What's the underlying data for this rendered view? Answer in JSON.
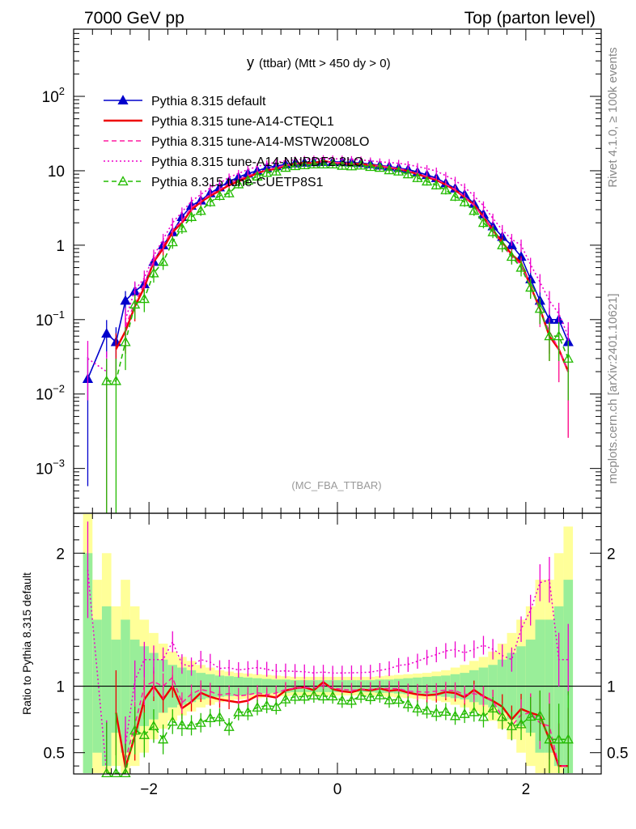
{
  "header": {
    "left": "7000 GeV pp",
    "right": "Top (parton level)"
  },
  "side_labels": {
    "rivet": "Rivet 4.1.0, ≥ 100k events",
    "mcplots": "mcplots.cern.ch [arXiv:2401.10621]"
  },
  "chart_data": {
    "type": "line",
    "title_main": "y",
    "title_sub": "(ttbar) (Mtt > 450 dy > 0)",
    "analysis_tag": "(MC_FBA_TTBAR)",
    "xlabel": "",
    "ylabel_ratio": "Ratio to Pythia 8.315 default",
    "xlim": [
      -2.8,
      2.8
    ],
    "ylim_main": [
      0.00025,
      800
    ],
    "ylim_ratio": [
      0.34,
      2.3
    ],
    "main_y_ticks": [
      {
        "v": 0.001,
        "t": "10",
        "e": "−3"
      },
      {
        "v": 0.01,
        "t": "10",
        "e": "−2"
      },
      {
        "v": 0.1,
        "t": "10",
        "e": "−1"
      },
      {
        "v": 1,
        "t": "1",
        "e": ""
      },
      {
        "v": 10,
        "t": "10",
        "e": ""
      },
      {
        "v": 100,
        "t": "10",
        "e": "2"
      }
    ],
    "ratio_y_ticks": [
      {
        "v": 0.5,
        "t": "0.5"
      },
      {
        "v": 1,
        "t": "1"
      },
      {
        "v": 2,
        "t": "2"
      }
    ],
    "x_ticks": [
      {
        "v": -2,
        "t": "−2"
      },
      {
        "v": 0,
        "t": "0"
      },
      {
        "v": 2,
        "t": "2"
      }
    ],
    "x": [
      -2.65,
      -2.45,
      -2.35,
      -2.25,
      -2.15,
      -2.05,
      -1.95,
      -1.85,
      -1.75,
      -1.65,
      -1.55,
      -1.45,
      -1.35,
      -1.25,
      -1.15,
      -1.05,
      -0.95,
      -0.85,
      -0.75,
      -0.65,
      -0.55,
      -0.45,
      -0.35,
      -0.25,
      -0.15,
      -0.05,
      0.05,
      0.15,
      0.25,
      0.35,
      0.45,
      0.55,
      0.65,
      0.75,
      0.85,
      0.95,
      1.05,
      1.15,
      1.25,
      1.35,
      1.45,
      1.55,
      1.65,
      1.75,
      1.85,
      1.95,
      2.05,
      2.15,
      2.25,
      2.35,
      2.45
    ],
    "series": [
      {
        "name": "Pythia 8.315 default",
        "color": "#0000cc",
        "style": "solid",
        "marker": "triangle",
        "values": [
          0.016,
          0.065,
          0.05,
          0.18,
          0.24,
          0.3,
          0.6,
          1.0,
          1.5,
          2.4,
          3.4,
          4.0,
          5.0,
          6.0,
          7.2,
          8.2,
          9.2,
          10.0,
          11.0,
          11.6,
          12.2,
          12.6,
          12.9,
          13.1,
          13.2,
          13.2,
          13.1,
          12.9,
          12.7,
          12.3,
          11.8,
          11.4,
          10.9,
          10.4,
          9.6,
          8.8,
          8.0,
          6.8,
          5.8,
          4.8,
          3.6,
          2.6,
          1.8,
          1.3,
          1.0,
          0.7,
          0.35,
          0.18,
          0.1,
          0.1,
          0.05
        ]
      },
      {
        "name": "Pythia 8.315 tune-A14-CTEQL1",
        "color": "#ee0000",
        "style": "solid",
        "marker": "none",
        "values": [
          null,
          null,
          0.04,
          0.07,
          0.15,
          0.27,
          0.6,
          0.9,
          1.5,
          2.0,
          3.0,
          3.8,
          4.6,
          5.4,
          6.4,
          7.2,
          8.2,
          9.3,
          10.2,
          10.6,
          11.8,
          12.4,
          12.8,
          12.7,
          13.6,
          12.9,
          12.6,
          12.3,
          12.4,
          11.9,
          11.6,
          11.0,
          10.6,
          9.9,
          9.0,
          8.2,
          7.5,
          6.5,
          5.5,
          4.4,
          3.5,
          2.4,
          1.6,
          1.1,
          0.75,
          0.58,
          0.28,
          0.14,
          0.06,
          0.04,
          0.02
        ]
      },
      {
        "name": "Pythia 8.315 tune-A14-MSTW2008LO",
        "color": "#ff1aa0",
        "style": "dashed",
        "marker": "none",
        "values": [
          null,
          0.012,
          null,
          0.08,
          0.17,
          0.3,
          0.62,
          1.0,
          1.6,
          2.1,
          3.2,
          3.9,
          4.8,
          5.6,
          6.8,
          7.6,
          8.6,
          9.5,
          10.3,
          11.0,
          11.9,
          12.4,
          12.8,
          12.9,
          13.3,
          13.0,
          12.8,
          12.5,
          12.4,
          12.0,
          11.6,
          11.2,
          10.7,
          10.0,
          9.2,
          8.4,
          7.7,
          6.6,
          5.6,
          4.5,
          3.4,
          2.4,
          1.6,
          1.0,
          0.7,
          0.55,
          0.28,
          0.13,
          0.07,
          0.04,
          0.02
        ]
      },
      {
        "name": "Pythia 8.315 tune-A14-NNPDF2.3LO",
        "color": "#ee00cc",
        "style": "dotted",
        "marker": "none",
        "values": [
          0.03,
          0.02,
          null,
          0.1,
          0.25,
          0.36,
          0.72,
          1.2,
          2.0,
          2.8,
          3.9,
          4.8,
          5.9,
          6.8,
          8.2,
          9.2,
          10.4,
          11.4,
          12.4,
          12.9,
          13.6,
          14.0,
          14.3,
          14.4,
          14.6,
          14.5,
          14.4,
          14.2,
          14.0,
          13.6,
          13.2,
          12.9,
          12.6,
          12.1,
          11.4,
          10.7,
          9.9,
          8.6,
          7.4,
          6.0,
          4.6,
          3.4,
          2.3,
          1.6,
          1.2,
          1.0,
          0.55,
          0.32,
          0.18,
          0.12,
          0.06
        ]
      },
      {
        "name": "Pythia 8.315 tune-CUETP8S1",
        "color": "#22bb00",
        "style": "dashed",
        "marker": "triangle-open",
        "values": [
          null,
          0.015,
          0.015,
          0.05,
          0.16,
          0.19,
          0.42,
          0.6,
          1.1,
          1.7,
          2.4,
          2.9,
          3.8,
          4.6,
          5.0,
          6.6,
          7.4,
          8.4,
          9.4,
          9.8,
          11.0,
          11.6,
          11.9,
          12.2,
          12.2,
          12.2,
          11.7,
          11.5,
          11.8,
          11.3,
          11.0,
          10.2,
          9.8,
          9.0,
          8.0,
          7.2,
          6.4,
          5.5,
          4.5,
          3.8,
          2.9,
          2.0,
          1.5,
          1.0,
          0.7,
          0.5,
          0.27,
          0.14,
          0.06,
          0.06,
          0.03
        ]
      }
    ],
    "mc_band": {
      "x_edges": [
        -2.7,
        -2.6,
        -2.5,
        -2.4,
        -2.3,
        -2.2,
        -2.1,
        -2.0,
        -1.9,
        -1.8,
        -1.7,
        -1.6,
        -1.5,
        -1.4,
        -1.3,
        -1.2,
        -1.1,
        -1.0,
        -0.9,
        -0.8,
        -0.7,
        -0.6,
        -0.5,
        -0.4,
        -0.3,
        -0.2,
        -0.1,
        0.0,
        0.1,
        0.2,
        0.3,
        0.4,
        0.5,
        0.6,
        0.7,
        0.8,
        0.9,
        1.0,
        1.1,
        1.2,
        1.3,
        1.4,
        1.5,
        1.6,
        1.7,
        1.8,
        1.9,
        2.0,
        2.1,
        2.2,
        2.3,
        2.4,
        2.5
      ],
      "stat_halfwidth": [
        1.0,
        0.5,
        0.6,
        0.35,
        0.5,
        0.35,
        0.3,
        0.25,
        0.2,
        0.16,
        0.14,
        0.12,
        0.1,
        0.09,
        0.08,
        0.075,
        0.07,
        0.065,
        0.06,
        0.055,
        0.05,
        0.05,
        0.045,
        0.045,
        0.045,
        0.045,
        0.045,
        0.045,
        0.045,
        0.045,
        0.045,
        0.05,
        0.05,
        0.055,
        0.06,
        0.065,
        0.07,
        0.075,
        0.08,
        0.09,
        0.1,
        0.12,
        0.14,
        0.16,
        0.2,
        0.25,
        0.3,
        0.35,
        0.5,
        0.5,
        0.6,
        0.8
      ],
      "total_halfwidth": [
        1.3,
        0.8,
        1.0,
        0.6,
        0.8,
        0.6,
        0.5,
        0.4,
        0.32,
        0.26,
        0.22,
        0.19,
        0.16,
        0.14,
        0.12,
        0.11,
        0.1,
        0.095,
        0.09,
        0.085,
        0.08,
        0.075,
        0.07,
        0.07,
        0.07,
        0.07,
        0.07,
        0.07,
        0.07,
        0.07,
        0.07,
        0.075,
        0.08,
        0.085,
        0.09,
        0.095,
        0.1,
        0.11,
        0.12,
        0.14,
        0.16,
        0.19,
        0.22,
        0.26,
        0.32,
        0.4,
        0.5,
        0.6,
        0.8,
        0.8,
        1.0,
        1.2
      ]
    }
  }
}
